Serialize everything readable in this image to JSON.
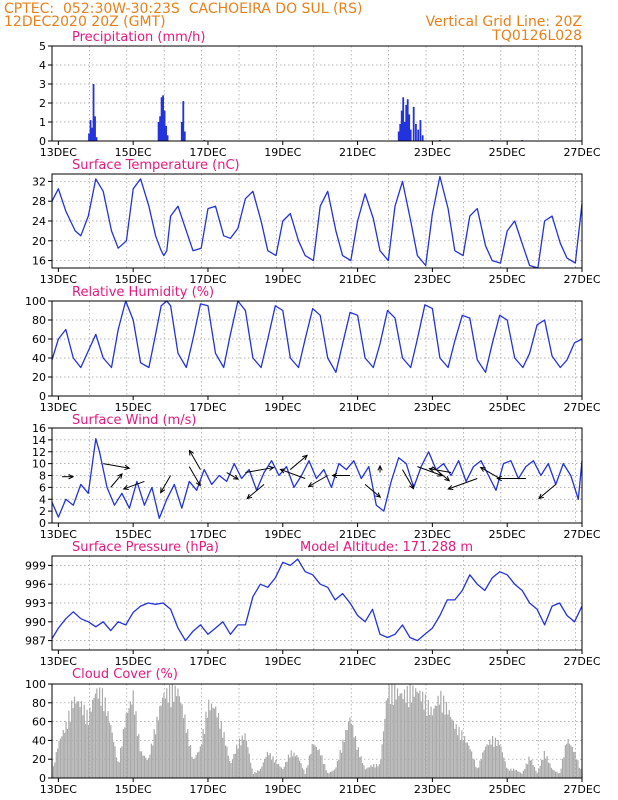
{
  "header": {
    "line1_left": "CPTEC:  052:30W-30:23S  CACHOEIRA DO SUL (RS)",
    "line2_left": "12DEC2020 20Z (GMT)",
    "line2_right": "Vertical Grid Line: 20Z",
    "line3_right": "TQ0126L028"
  },
  "colors": {
    "header": "#e8801a",
    "panel_title": "#e6197f",
    "line": "#2233dd",
    "cloud": "#a9a9a9",
    "grid": "#9a9a9a"
  },
  "x_axis": {
    "start": "12DEC2020 20Z",
    "end": "27DEC2020 00Z",
    "tick_labels": [
      "13DEC",
      "15DEC",
      "17DEC",
      "19DEC",
      "21DEC",
      "23DEC",
      "25DEC",
      "27DEC"
    ]
  },
  "chart_data": [
    {
      "type": "bar",
      "title": "Precipitation (mm/h)",
      "ylim": [
        0,
        5
      ],
      "yticks": [
        0,
        1,
        2,
        3,
        4,
        5
      ],
      "x_unit": "days after 12DEC 00Z",
      "x": [
        1.82,
        1.86,
        1.9,
        1.94,
        1.98,
        2.02,
        3.68,
        3.72,
        3.76,
        3.8,
        3.84,
        3.88,
        3.92,
        4.3,
        4.34,
        4.38,
        4.9,
        10.1,
        10.14,
        10.18,
        10.22,
        10.26,
        10.3,
        10.34,
        10.38,
        10.42,
        10.5,
        10.56,
        10.62,
        10.68,
        10.74,
        11.2,
        12.6,
        13.4
      ],
      "values": [
        0.4,
        1.1,
        0.7,
        3.0,
        1.3,
        0.2,
        1.0,
        1.3,
        2.3,
        2.4,
        1.6,
        0.8,
        0.3,
        1.0,
        2.1,
        0.5,
        0.05,
        0.5,
        0.9,
        1.6,
        2.3,
        1.0,
        1.9,
        2.2,
        1.4,
        0.6,
        1.8,
        0.9,
        0.6,
        1.1,
        0.3,
        0.05,
        0.05,
        0.05
      ],
      "grid": true
    },
    {
      "type": "line",
      "title": "Surface Temperature (nC)",
      "ylim": [
        14.5,
        33.5
      ],
      "yticks": [
        16,
        20,
        24,
        28,
        32
      ],
      "series": [
        {
          "x": [
            0.83,
            1.0,
            1.2,
            1.45,
            1.6,
            1.8,
            2.0,
            2.2,
            2.42,
            2.6,
            2.82,
            3.0,
            3.2,
            3.42,
            3.6,
            3.75,
            3.82,
            3.9,
            4.0,
            4.2,
            4.42,
            4.6,
            4.82,
            5.0,
            5.2,
            5.42,
            5.6,
            5.8,
            6.0,
            6.2,
            6.42,
            6.6,
            6.82,
            7.0,
            7.2,
            7.42,
            7.6,
            7.82,
            8.0,
            8.2,
            8.42,
            8.6,
            8.82,
            9.0,
            9.2,
            9.42,
            9.6,
            9.82,
            10.0,
            10.2,
            10.42,
            10.6,
            10.82,
            11.0,
            11.2,
            11.42,
            11.6,
            11.82,
            12.0,
            12.2,
            12.42,
            12.6,
            12.82,
            13.0,
            13.2,
            13.42,
            13.6,
            13.82,
            14.0,
            14.2,
            14.42,
            14.6,
            14.82,
            15.0
          ],
          "y": [
            28.0,
            30.5,
            26.0,
            22.0,
            21.0,
            25.0,
            32.5,
            30.0,
            22.0,
            18.5,
            20.0,
            30.5,
            32.5,
            27.0,
            21.0,
            18.0,
            17.0,
            18.0,
            25.0,
            27.0,
            22.0,
            18.0,
            18.5,
            26.5,
            27.0,
            21.0,
            20.5,
            22.5,
            28.5,
            30.0,
            24.0,
            18.0,
            17.0,
            24.0,
            25.5,
            20.0,
            17.0,
            16.0,
            27.0,
            30.0,
            22.0,
            17.0,
            16.0,
            24.0,
            29.5,
            24.5,
            18.0,
            16.0,
            27.0,
            32.0,
            24.0,
            17.0,
            15.0,
            25.5,
            33.0,
            26.5,
            18.0,
            17.0,
            25.0,
            26.5,
            19.0,
            16.0,
            15.5,
            22.0,
            24.0,
            19.0,
            15.0,
            14.5,
            24.0,
            25.0,
            19.5,
            16.5,
            15.5,
            27.5
          ]
        }
      ],
      "grid": true
    },
    {
      "type": "line",
      "title": "Relative Humidity (%)",
      "ylim": [
        0,
        100
      ],
      "yticks": [
        0,
        20,
        40,
        60,
        80,
        100
      ],
      "series": [
        {
          "x": [
            0.83,
            1.0,
            1.2,
            1.4,
            1.6,
            1.83,
            2.0,
            2.2,
            2.42,
            2.6,
            2.8,
            3.0,
            3.2,
            3.42,
            3.6,
            3.75,
            3.9,
            4.0,
            4.2,
            4.42,
            4.6,
            4.8,
            5.0,
            5.2,
            5.42,
            5.6,
            5.8,
            6.0,
            6.2,
            6.42,
            6.6,
            6.8,
            7.0,
            7.2,
            7.42,
            7.6,
            7.8,
            8.0,
            8.2,
            8.42,
            8.6,
            8.8,
            9.0,
            9.2,
            9.42,
            9.6,
            9.8,
            10.0,
            10.2,
            10.42,
            10.6,
            10.8,
            11.0,
            11.2,
            11.42,
            11.6,
            11.8,
            12.0,
            12.2,
            12.42,
            12.6,
            12.8,
            13.0,
            13.2,
            13.42,
            13.6,
            13.8,
            14.0,
            14.2,
            14.42,
            14.6,
            14.8,
            15.0
          ],
          "y": [
            38,
            60,
            70,
            40,
            30,
            50,
            65,
            40,
            30,
            70,
            100,
            80,
            35,
            30,
            65,
            95,
            100,
            95,
            45,
            30,
            60,
            97,
            95,
            45,
            30,
            65,
            100,
            90,
            40,
            30,
            60,
            95,
            90,
            40,
            30,
            60,
            92,
            85,
            40,
            25,
            55,
            88,
            85,
            40,
            30,
            55,
            90,
            82,
            40,
            30,
            60,
            96,
            92,
            40,
            30,
            58,
            85,
            82,
            38,
            25,
            55,
            85,
            80,
            40,
            30,
            45,
            75,
            80,
            42,
            30,
            38,
            56,
            60
          ]
        }
      ],
      "grid": true
    },
    {
      "type": "line",
      "title": "Surface Wind (m/s)",
      "ylim": [
        0,
        16
      ],
      "yticks": [
        0,
        2,
        4,
        6,
        8,
        10,
        12,
        14,
        16
      ],
      "series": [
        {
          "x": [
            0.83,
            1.0,
            1.2,
            1.4,
            1.6,
            1.8,
            2.0,
            2.1,
            2.3,
            2.5,
            2.7,
            2.9,
            3.1,
            3.3,
            3.5,
            3.7,
            3.9,
            4.1,
            4.3,
            4.5,
            4.7,
            4.9,
            5.1,
            5.3,
            5.5,
            5.7,
            5.9,
            6.1,
            6.3,
            6.5,
            6.7,
            6.9,
            7.1,
            7.3,
            7.5,
            7.7,
            7.9,
            8.1,
            8.3,
            8.5,
            8.7,
            8.9,
            9.1,
            9.3,
            9.5,
            9.7,
            9.9,
            10.1,
            10.3,
            10.5,
            10.7,
            10.9,
            11.1,
            11.3,
            11.5,
            11.7,
            11.9,
            12.1,
            12.3,
            12.5,
            12.7,
            12.9,
            13.1,
            13.3,
            13.5,
            13.7,
            13.9,
            14.1,
            14.3,
            14.5,
            14.7,
            14.9,
            15.0
          ],
          "y": [
            3.5,
            1.0,
            4.0,
            3.0,
            6.5,
            5.0,
            14.2,
            12.0,
            6.0,
            3.0,
            5.0,
            2.5,
            7.0,
            3.0,
            6.0,
            0.8,
            4.0,
            6.5,
            2.5,
            7.0,
            5.5,
            9.0,
            6.5,
            8.0,
            7.0,
            10.0,
            7.5,
            9.0,
            5.5,
            8.5,
            10.5,
            8.0,
            9.5,
            6.0,
            8.0,
            10.5,
            7.5,
            9.0,
            6.0,
            10.0,
            9.0,
            10.5,
            7.5,
            9.5,
            3.0,
            2.0,
            7.0,
            11.0,
            10.0,
            6.0,
            9.5,
            12.0,
            9.0,
            10.0,
            8.0,
            10.5,
            7.0,
            9.5,
            10.5,
            8.0,
            5.5,
            10.0,
            10.5,
            7.5,
            9.5,
            10.5,
            8.0,
            10.0,
            6.5,
            10.0,
            8.0,
            4.0,
            10.5
          ]
        }
      ],
      "wind_arrows": [
        {
          "x": 1.1,
          "y": 7.8,
          "dir_deg": 0,
          "len": 0.5
        },
        {
          "x": 2.2,
          "y": 10.0,
          "dir_deg": -10,
          "len": 1.2
        },
        {
          "x": 2.4,
          "y": 6.0,
          "dir_deg": 50,
          "len": 0.8
        },
        {
          "x": 3.3,
          "y": 7.0,
          "dir_deg": 200,
          "len": 1.0
        },
        {
          "x": 4.0,
          "y": 8.0,
          "dir_deg": 240,
          "len": 0.9
        },
        {
          "x": 4.5,
          "y": 9.5,
          "dir_deg": 300,
          "len": 1.0
        },
        {
          "x": 4.8,
          "y": 9.0,
          "dir_deg": 120,
          "len": 1.0
        },
        {
          "x": 5.5,
          "y": 8.5,
          "dir_deg": 330,
          "len": 0.6
        },
        {
          "x": 6.0,
          "y": 8.5,
          "dir_deg": 10,
          "len": 1.3
        },
        {
          "x": 6.5,
          "y": 6.5,
          "dir_deg": 220,
          "len": 1.0
        },
        {
          "x": 7.2,
          "y": 9.0,
          "dir_deg": 40,
          "len": 1.0
        },
        {
          "x": 7.6,
          "y": 7.5,
          "dir_deg": 160,
          "len": 1.2
        },
        {
          "x": 8.2,
          "y": 8.0,
          "dir_deg": 210,
          "len": 1.0
        },
        {
          "x": 8.8,
          "y": 8.0,
          "dir_deg": 180,
          "len": 0.8
        },
        {
          "x": 9.2,
          "y": 6.5,
          "dir_deg": 320,
          "len": 0.9
        },
        {
          "x": 9.6,
          "y": 8.5,
          "dir_deg": 90,
          "len": 0.3
        },
        {
          "x": 10.2,
          "y": 9.0,
          "dir_deg": 300,
          "len": 1.0
        },
        {
          "x": 10.6,
          "y": 9.5,
          "dir_deg": 340,
          "len": 1.2
        },
        {
          "x": 11.0,
          "y": 9.5,
          "dir_deg": 320,
          "len": 1.0
        },
        {
          "x": 11.5,
          "y": 8.5,
          "dir_deg": 170,
          "len": 1.0
        },
        {
          "x": 12.2,
          "y": 7.5,
          "dir_deg": 200,
          "len": 1.4
        },
        {
          "x": 12.8,
          "y": 7.5,
          "dir_deg": 150,
          "len": 1.0
        },
        {
          "x": 13.5,
          "y": 7.5,
          "dir_deg": 180,
          "len": 1.3
        },
        {
          "x": 14.3,
          "y": 6.5,
          "dir_deg": 220,
          "len": 1.0
        }
      ],
      "grid": true
    },
    {
      "type": "line",
      "title": "Surface Pressure (hPa)",
      "annotation": "Model Altitude: 171.288 m",
      "ylim": [
        985.5,
        1000.5
      ],
      "yticks": [
        987,
        990,
        993,
        996,
        999
      ],
      "series": [
        {
          "x": [
            0.83,
            1.0,
            1.2,
            1.4,
            1.6,
            1.8,
            2.0,
            2.2,
            2.4,
            2.6,
            2.8,
            3.0,
            3.2,
            3.4,
            3.6,
            3.8,
            4.0,
            4.2,
            4.4,
            4.6,
            4.8,
            5.0,
            5.2,
            5.4,
            5.6,
            5.8,
            6.0,
            6.2,
            6.4,
            6.6,
            6.8,
            7.0,
            7.2,
            7.4,
            7.6,
            7.8,
            8.0,
            8.2,
            8.4,
            8.6,
            8.8,
            9.0,
            9.2,
            9.4,
            9.6,
            9.8,
            10.0,
            10.2,
            10.4,
            10.6,
            10.8,
            11.0,
            11.2,
            11.4,
            11.6,
            11.8,
            12.0,
            12.2,
            12.4,
            12.6,
            12.8,
            13.0,
            13.2,
            13.4,
            13.6,
            13.8,
            14.0,
            14.2,
            14.4,
            14.6,
            14.8,
            15.0
          ],
          "y": [
            987.3,
            989.0,
            990.5,
            991.6,
            990.5,
            990.0,
            989.2,
            990.0,
            988.6,
            990.0,
            989.5,
            991.5,
            992.5,
            993.0,
            992.8,
            993.0,
            992.0,
            989.0,
            987.0,
            988.5,
            989.5,
            988.0,
            989.0,
            990.0,
            988.0,
            989.5,
            989.5,
            994.0,
            996.0,
            995.5,
            997.0,
            999.5,
            999.0,
            1000.0,
            998.0,
            997.5,
            996.0,
            995.5,
            993.5,
            994.5,
            993.0,
            991.0,
            990.0,
            992.0,
            988.0,
            987.5,
            988.0,
            989.5,
            987.5,
            987.0,
            988.0,
            989.0,
            991.0,
            993.5,
            993.5,
            995.0,
            997.5,
            996.0,
            995.0,
            997.0,
            998.0,
            997.5,
            996.0,
            995.0,
            993.0,
            992.0,
            989.5,
            992.5,
            993.0,
            991.0,
            990.0,
            992.5
          ]
        }
      ],
      "grid": true
    },
    {
      "type": "area",
      "title": "Cloud Cover (%)",
      "ylim": [
        0,
        100
      ],
      "yticks": [
        0,
        20,
        40,
        60,
        80,
        100
      ],
      "series": [
        {
          "x": [
            0.83,
            1.0,
            1.2,
            1.4,
            1.6,
            1.8,
            2.0,
            2.2,
            2.4,
            2.6,
            2.8,
            3.0,
            3.2,
            3.4,
            3.6,
            3.8,
            4.0,
            4.2,
            4.4,
            4.6,
            4.8,
            5.0,
            5.2,
            5.4,
            5.6,
            5.8,
            6.0,
            6.2,
            6.4,
            6.6,
            6.8,
            7.0,
            7.2,
            7.4,
            7.6,
            7.8,
            8.0,
            8.2,
            8.4,
            8.6,
            8.8,
            9.0,
            9.2,
            9.4,
            9.6,
            9.8,
            10.0,
            10.2,
            10.4,
            10.6,
            10.8,
            11.0,
            11.2,
            11.4,
            11.6,
            11.8,
            12.0,
            12.2,
            12.4,
            12.6,
            12.8,
            13.0,
            13.2,
            13.4,
            13.6,
            13.8,
            14.0,
            14.2,
            14.4,
            14.6,
            14.8,
            15.0
          ],
          "y": [
            5,
            40,
            60,
            90,
            85,
            70,
            100,
            95,
            60,
            15,
            70,
            95,
            30,
            20,
            60,
            95,
            100,
            100,
            65,
            20,
            35,
            85,
            80,
            55,
            15,
            40,
            50,
            5,
            10,
            30,
            20,
            10,
            30,
            25,
            5,
            40,
            30,
            5,
            10,
            40,
            70,
            35,
            10,
            15,
            15,
            100,
            100,
            95,
            100,
            100,
            90,
            75,
            95,
            80,
            60,
            50,
            35,
            10,
            35,
            45,
            40,
            10,
            10,
            5,
            25,
            5,
            30,
            10,
            5,
            45,
            30,
            5
          ]
        }
      ],
      "grid": true
    }
  ]
}
